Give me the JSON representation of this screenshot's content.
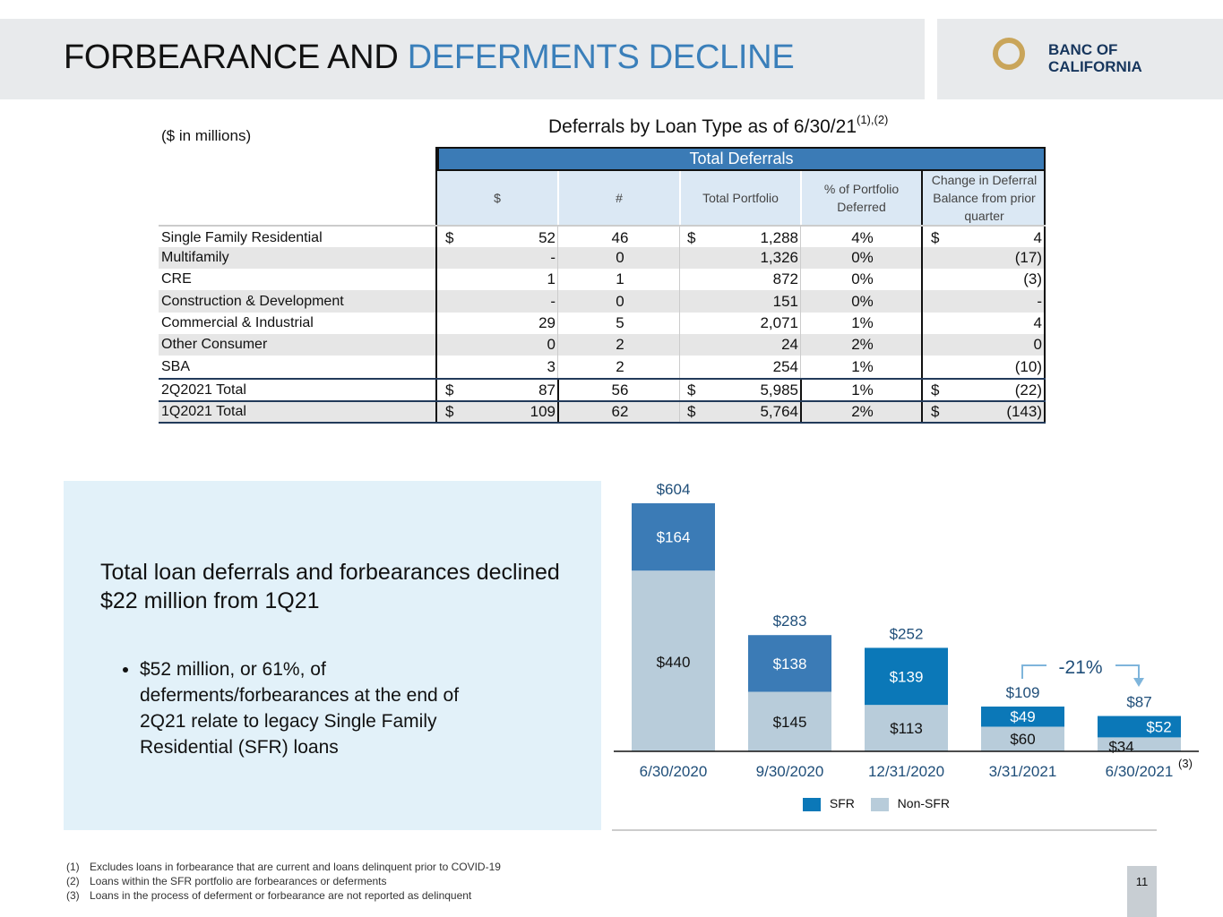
{
  "header": {
    "title_black": "FORBEARANCE AND ",
    "title_blue": "DEFERMENTS DECLINE",
    "logo_line1": "BANC OF",
    "logo_line2": "CALIFORNIA"
  },
  "table": {
    "units": "($ in millions)",
    "title": "Deferrals by Loan Type as of 6/30/21",
    "title_sup": "(1),(2)",
    "group_header": "Total Deferrals",
    "columns": [
      "$",
      "#",
      "Total Portfolio",
      "% of Portfolio Deferred",
      "Change in Deferral Balance from prior quarter"
    ],
    "rows": [
      {
        "label": "Single Family Residential",
        "d1": "$",
        "amt": "52",
        "num": "46",
        "d2": "$",
        "portfolio": "1,288",
        "pct": "4%",
        "d3": "$",
        "change": "4"
      },
      {
        "label": "Multifamily",
        "d1": "",
        "amt": "-",
        "num": "0",
        "d2": "",
        "portfolio": "1,326",
        "pct": "0%",
        "d3": "",
        "change": "(17)"
      },
      {
        "label": "CRE",
        "d1": "",
        "amt": "1",
        "num": "1",
        "d2": "",
        "portfolio": "872",
        "pct": "0%",
        "d3": "",
        "change": "(3)"
      },
      {
        "label": "Construction & Development",
        "d1": "",
        "amt": "-",
        "num": "0",
        "d2": "",
        "portfolio": "151",
        "pct": "0%",
        "d3": "",
        "change": "-"
      },
      {
        "label": "Commercial & Industrial",
        "d1": "",
        "amt": "29",
        "num": "5",
        "d2": "",
        "portfolio": "2,071",
        "pct": "1%",
        "d3": "",
        "change": "4"
      },
      {
        "label": "Other Consumer",
        "d1": "",
        "amt": "0",
        "num": "2",
        "d2": "",
        "portfolio": "24",
        "pct": "2%",
        "d3": "",
        "change": "0"
      },
      {
        "label": "SBA",
        "d1": "",
        "amt": "3",
        "num": "2",
        "d2": "",
        "portfolio": "254",
        "pct": "1%",
        "d3": "",
        "change": "(10)"
      },
      {
        "label": "2Q2021 Total",
        "d1": "$",
        "amt": "87",
        "num": "56",
        "d2": "$",
        "portfolio": "5,985",
        "pct": "1%",
        "d3": "$",
        "change": "(22)"
      },
      {
        "label": "1Q2021 Total",
        "d1": "$",
        "amt": "109",
        "num": "62",
        "d2": "$",
        "portfolio": "5,764",
        "pct": "2%",
        "d3": "$",
        "change": "(143)"
      }
    ]
  },
  "panel": {
    "headline": "Total loan deferrals and forbearances declined $22 million from 1Q21",
    "bullet": "$52 million, or 61%, of deferments/forbearances at the end of 2Q21 relate to legacy Single Family Residential (SFR) loans"
  },
  "chart_data": {
    "type": "bar",
    "stacked": true,
    "categories": [
      "6/30/2020",
      "9/30/2020",
      "12/31/2020",
      "3/31/2021",
      "6/30/2021"
    ],
    "series": [
      {
        "name": "Non-SFR",
        "values": [
          440,
          145,
          113,
          60,
          34
        ],
        "color": "#b8ccda"
      },
      {
        "name": "SFR",
        "values": [
          164,
          138,
          139,
          49,
          52
        ],
        "color": "#0b78b8"
      }
    ],
    "totals": [
      604,
      283,
      252,
      109,
      87
    ],
    "total_labels": [
      "$604",
      "$283",
      "$252",
      "$109",
      "$87"
    ],
    "sfr_labels": [
      "$164",
      "$138",
      "$139",
      "$49",
      "$52"
    ],
    "nonsfr_labels": [
      "$440",
      "$145",
      "$113",
      "$60",
      "$34"
    ],
    "last_category_note": "(3)",
    "change_annotation": "-21%",
    "legend": [
      "SFR",
      "Non-SFR"
    ],
    "legend_colors": [
      "#0b78b8",
      "#b8ccda"
    ],
    "ylim": [
      0,
      604
    ],
    "grid": false,
    "legend_position": "bottom"
  },
  "footnotes": [
    {
      "n": "(1)",
      "text": "Excludes loans in forbearance that are current and loans delinquent prior to COVID-19"
    },
    {
      "n": "(2)",
      "text": "Loans within the SFR portfolio are forbearances or deferments"
    },
    {
      "n": "(3)",
      "text": "Loans in the process of deferment or forbearance are not reported as delinquent"
    }
  ],
  "page_number": "11"
}
